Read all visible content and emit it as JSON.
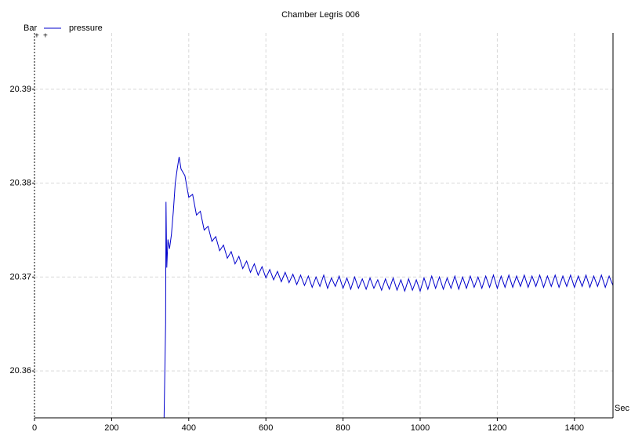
{
  "chart_data": {
    "type": "line",
    "title": "Chamber Legris 006",
    "x_label": "Sec",
    "y_label": "Bar",
    "xlim": [
      0,
      1500
    ],
    "ylim": [
      20.355,
      20.396
    ],
    "xticks": [
      0,
      200,
      400,
      600,
      800,
      1000,
      1200,
      1400
    ],
    "yticks": [
      20.36,
      20.37,
      20.38,
      20.39
    ],
    "grid": true,
    "legend": "top-left",
    "x": [
      336,
      340,
      341,
      343,
      346,
      350,
      355,
      360,
      365,
      370,
      375,
      380,
      390,
      400,
      410,
      420,
      430,
      440,
      450,
      460,
      470,
      480,
      490,
      500,
      510,
      520,
      530,
      540,
      550,
      560,
      570,
      580,
      590,
      600,
      610,
      620,
      630,
      640,
      650,
      660,
      670,
      680,
      690,
      700,
      710,
      720,
      730,
      740,
      750,
      760,
      770,
      780,
      790,
      800,
      810,
      820,
      830,
      840,
      850,
      860,
      870,
      880,
      890,
      900,
      910,
      920,
      930,
      940,
      950,
      960,
      970,
      980,
      990,
      1000,
      1010,
      1020,
      1030,
      1040,
      1050,
      1060,
      1070,
      1080,
      1090,
      1100,
      1110,
      1120,
      1130,
      1140,
      1150,
      1160,
      1170,
      1180,
      1190,
      1200,
      1210,
      1220,
      1230,
      1240,
      1250,
      1260,
      1270,
      1280,
      1290,
      1300,
      1310,
      1320,
      1330,
      1340,
      1350,
      1360,
      1370,
      1380,
      1390,
      1400,
      1410,
      1420,
      1430,
      1440,
      1450,
      1460,
      1470,
      1480,
      1490,
      1500
    ],
    "series": [
      {
        "name": "pressure",
        "color": "#0000cc",
        "values": [
          20.355,
          20.365,
          20.378,
          20.371,
          20.374,
          20.373,
          20.3745,
          20.377,
          20.38,
          20.3815,
          20.3828,
          20.3815,
          20.3808,
          20.3785,
          20.3788,
          20.3766,
          20.377,
          20.375,
          20.3754,
          20.3738,
          20.3743,
          20.3728,
          20.3734,
          20.372,
          20.3727,
          20.3714,
          20.3722,
          20.3709,
          20.3717,
          20.3705,
          20.3714,
          20.3702,
          20.3711,
          20.3699,
          20.3708,
          20.3697,
          20.3706,
          20.3695,
          20.3705,
          20.3694,
          20.3703,
          20.3692,
          20.3702,
          20.3691,
          20.3701,
          20.3689,
          20.37,
          20.369,
          20.3702,
          20.3688,
          20.3699,
          20.369,
          20.3701,
          20.3688,
          20.3699,
          20.3687,
          20.37,
          20.3688,
          20.3698,
          20.3687,
          20.3699,
          20.3688,
          20.3697,
          20.3686,
          20.3698,
          20.3687,
          20.3699,
          20.3686,
          20.3697,
          20.3685,
          20.3698,
          20.3686,
          20.3697,
          20.3685,
          20.3699,
          20.3687,
          20.3701,
          20.3688,
          20.37,
          20.3687,
          20.3699,
          20.3688,
          20.3701,
          20.3687,
          20.37,
          20.3688,
          20.3701,
          20.3689,
          20.37,
          20.3688,
          20.3701,
          20.3689,
          20.3702,
          20.3688,
          20.3701,
          20.3689,
          20.3702,
          20.3689,
          20.3701,
          20.369,
          20.3702,
          20.3689,
          20.3701,
          20.369,
          20.3702,
          20.3689,
          20.3701,
          20.369,
          20.3702,
          20.3689,
          20.3701,
          20.369,
          20.3702,
          20.3689,
          20.3701,
          20.369,
          20.3702,
          20.3689,
          20.3701,
          20.369,
          20.3702,
          20.3689,
          20.3701,
          20.3691
        ]
      }
    ]
  }
}
